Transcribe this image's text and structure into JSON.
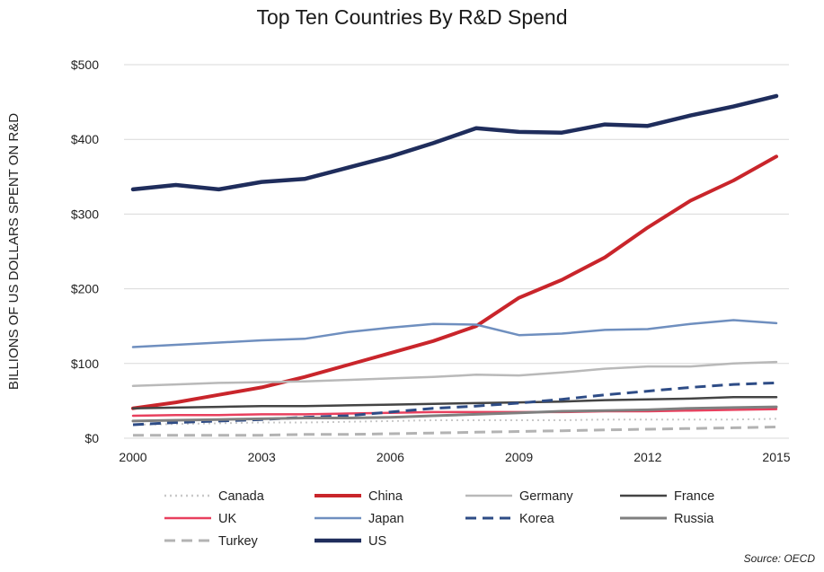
{
  "chart_data": {
    "type": "line",
    "title": "Top Ten Countries By R&D Spend",
    "xlabel": "",
    "ylabel": "BILLIONS OF US DOLLARS SPENT ON R&D",
    "source": "Source: OECD",
    "x": [
      2000,
      2001,
      2002,
      2003,
      2004,
      2005,
      2006,
      2007,
      2008,
      2009,
      2010,
      2011,
      2012,
      2013,
      2014,
      2015
    ],
    "xticks": [
      2000,
      2003,
      2006,
      2009,
      2012,
      2015
    ],
    "xtick_labels": [
      "2000",
      "2003",
      "2006",
      "2009",
      "2012",
      "2015"
    ],
    "xlim": [
      2000,
      2015
    ],
    "ylim": [
      0,
      500
    ],
    "yticks": [
      0,
      100,
      200,
      300,
      400,
      500
    ],
    "ytick_labels": [
      "$0",
      "$100",
      "$200",
      "$300",
      "$400",
      "$500"
    ],
    "grid": true,
    "legend_position": "bottom",
    "series": [
      {
        "name": "Canada",
        "color": "#c8c8c8",
        "style": "dotted",
        "width": 2,
        "values": [
          18,
          19,
          20,
          21,
          21,
          22,
          23,
          24,
          24,
          24,
          24,
          25,
          25,
          25,
          25,
          26
        ]
      },
      {
        "name": "China",
        "color": "#c9252b",
        "style": "solid",
        "width": 4,
        "values": [
          40,
          48,
          58,
          68,
          82,
          98,
          114,
          130,
          150,
          188,
          212,
          242,
          282,
          318,
          345,
          377
        ]
      },
      {
        "name": "Germany",
        "color": "#b9b9b9",
        "style": "solid",
        "width": 2.5,
        "values": [
          70,
          72,
          74,
          75,
          76,
          78,
          80,
          82,
          85,
          84,
          88,
          93,
          96,
          96,
          100,
          102
        ]
      },
      {
        "name": "France",
        "color": "#444444",
        "style": "solid",
        "width": 2.5,
        "values": [
          40,
          41,
          42,
          43,
          43,
          44,
          45,
          46,
          47,
          48,
          49,
          51,
          52,
          53,
          55,
          55
        ]
      },
      {
        "name": "UK",
        "color": "#e8405e",
        "style": "solid",
        "width": 2.5,
        "values": [
          30,
          31,
          31,
          32,
          32,
          33,
          34,
          35,
          35,
          35,
          35,
          36,
          36,
          37,
          38,
          39
        ]
      },
      {
        "name": "Japan",
        "color": "#6f8fbf",
        "style": "solid",
        "width": 2.5,
        "values": [
          122,
          125,
          128,
          131,
          133,
          142,
          148,
          153,
          152,
          138,
          140,
          145,
          146,
          153,
          158,
          154
        ]
      },
      {
        "name": "Korea",
        "color": "#2e4c86",
        "style": "dashed",
        "width": 3,
        "values": [
          18,
          21,
          23,
          25,
          28,
          30,
          35,
          40,
          43,
          47,
          52,
          58,
          63,
          68,
          72,
          74
        ]
      },
      {
        "name": "Russia",
        "color": "#7f7f7f",
        "style": "solid",
        "width": 3,
        "values": [
          23,
          24,
          25,
          26,
          27,
          27,
          28,
          30,
          32,
          34,
          36,
          37,
          38,
          40,
          41,
          42
        ]
      },
      {
        "name": "Turkey",
        "color": "#b3b3b3",
        "style": "dashed",
        "width": 3,
        "values": [
          4,
          4,
          4,
          4,
          5,
          5,
          6,
          7,
          8,
          9,
          10,
          11,
          12,
          13,
          14,
          15
        ]
      },
      {
        "name": "US",
        "color": "#1f2d5c",
        "style": "solid",
        "width": 4.5,
        "values": [
          333,
          339,
          333,
          343,
          347,
          362,
          377,
          395,
          415,
          410,
          409,
          420,
          418,
          432,
          444,
          458
        ]
      }
    ]
  }
}
